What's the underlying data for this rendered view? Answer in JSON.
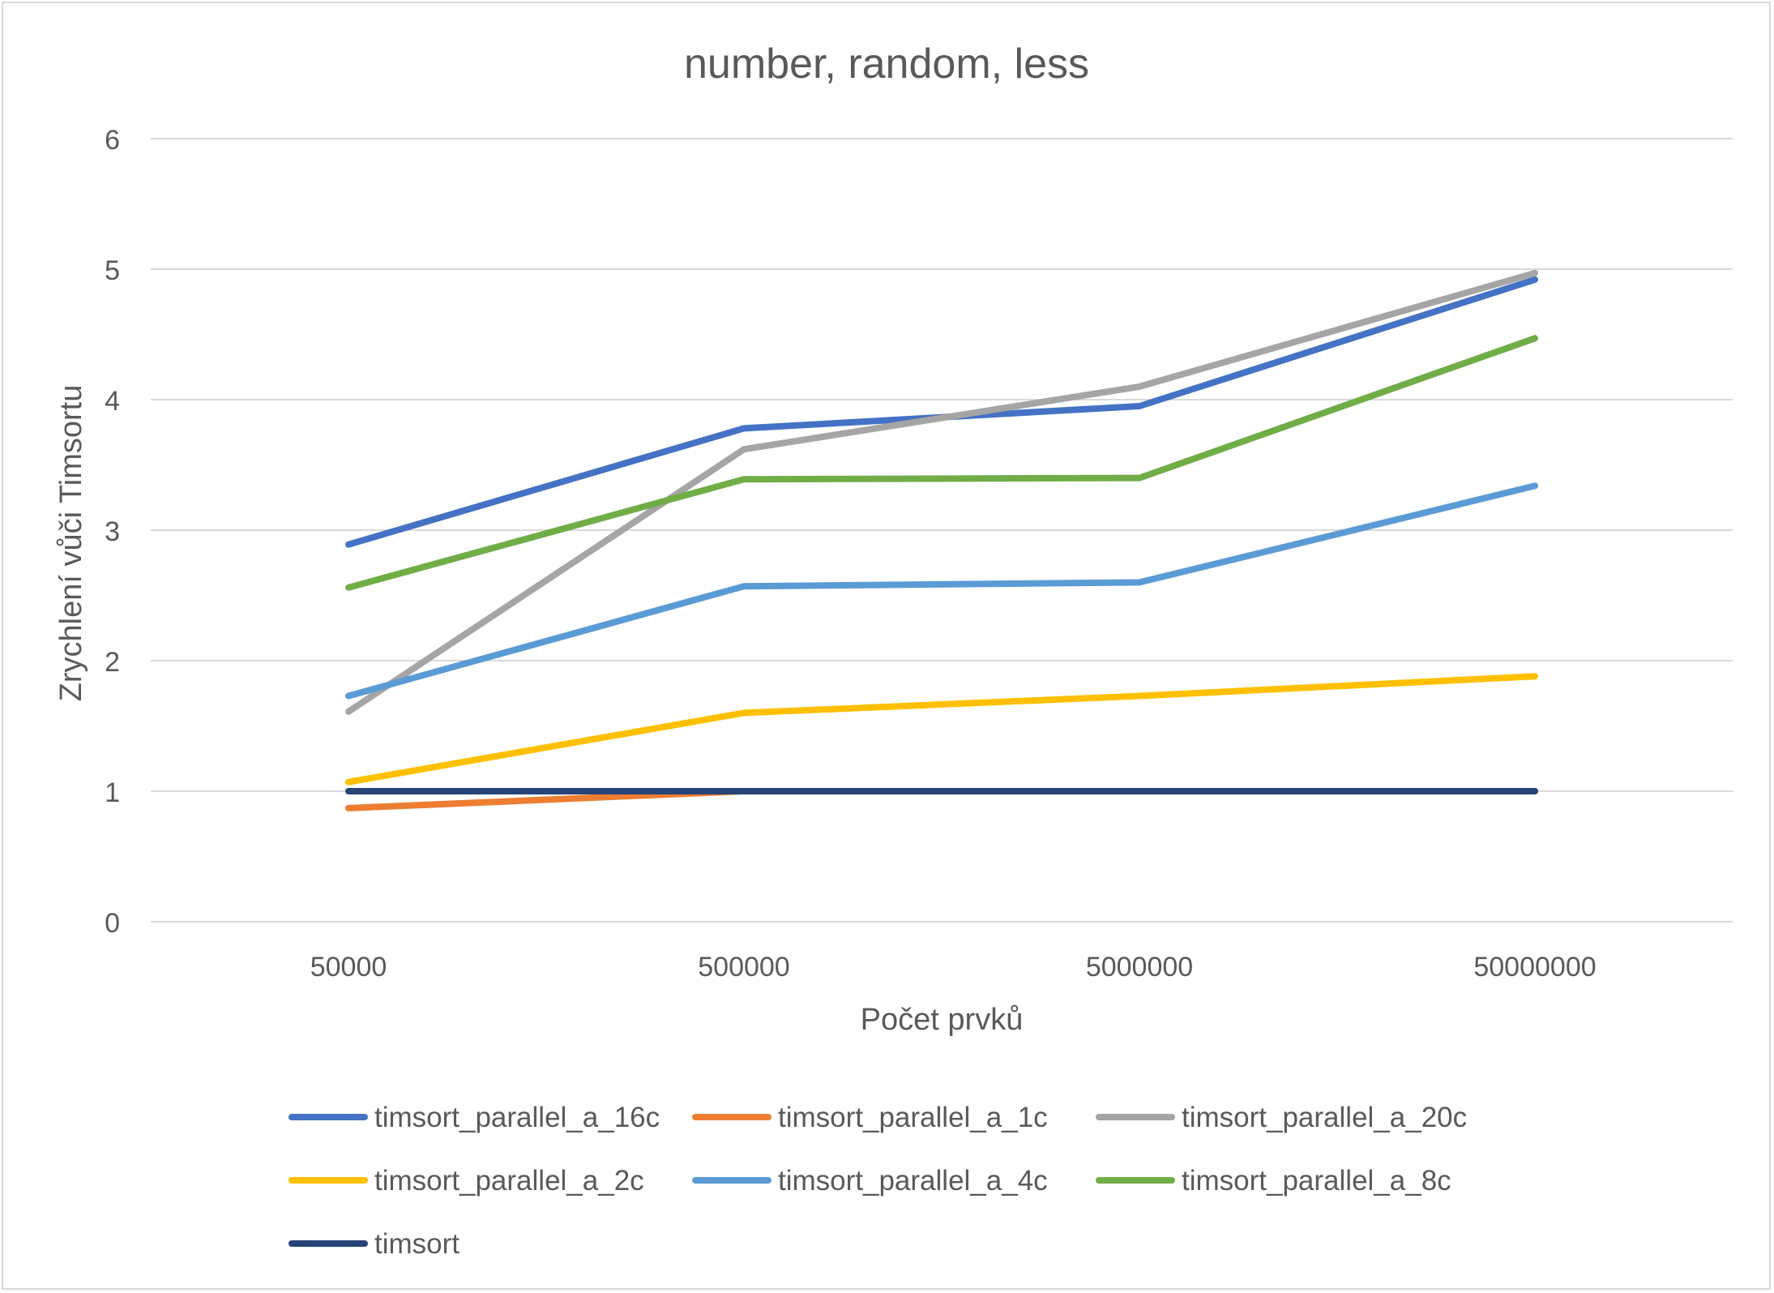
{
  "chart_data": {
    "type": "line",
    "title": "number, random, less",
    "xlabel": "Počet prvků",
    "ylabel": "Zrychlení vůči Timsortu",
    "categories": [
      "50000",
      "500000",
      "5000000",
      "50000000"
    ],
    "ylim": [
      0,
      6
    ],
    "yticks": [
      "0",
      "1",
      "2",
      "3",
      "4",
      "5",
      "6"
    ],
    "grid": true,
    "legend_position": "bottom",
    "series": [
      {
        "name": "timsort_parallel_a_16c",
        "color": "#4472C4",
        "values": [
          2.89,
          3.78,
          3.95,
          4.92
        ]
      },
      {
        "name": "timsort_parallel_a_1c",
        "color": "#ED7D31",
        "values": [
          0.87,
          1.0,
          1.0,
          1.0
        ]
      },
      {
        "name": "timsort_parallel_a_20c",
        "color": "#A5A5A5",
        "values": [
          1.61,
          3.62,
          4.1,
          4.97
        ]
      },
      {
        "name": "timsort_parallel_a_2c",
        "color": "#FFC000",
        "values": [
          1.07,
          1.6,
          1.73,
          1.88
        ]
      },
      {
        "name": "timsort_parallel_a_4c",
        "color": "#5B9BD5",
        "values": [
          1.73,
          2.57,
          2.6,
          3.34
        ]
      },
      {
        "name": "timsort_parallel_a_8c",
        "color": "#70AD47",
        "values": [
          2.56,
          3.39,
          3.4,
          4.47
        ]
      },
      {
        "name": "timsort",
        "color": "#264478",
        "values": [
          1.0,
          1.0,
          1.0,
          1.0
        ]
      }
    ]
  }
}
